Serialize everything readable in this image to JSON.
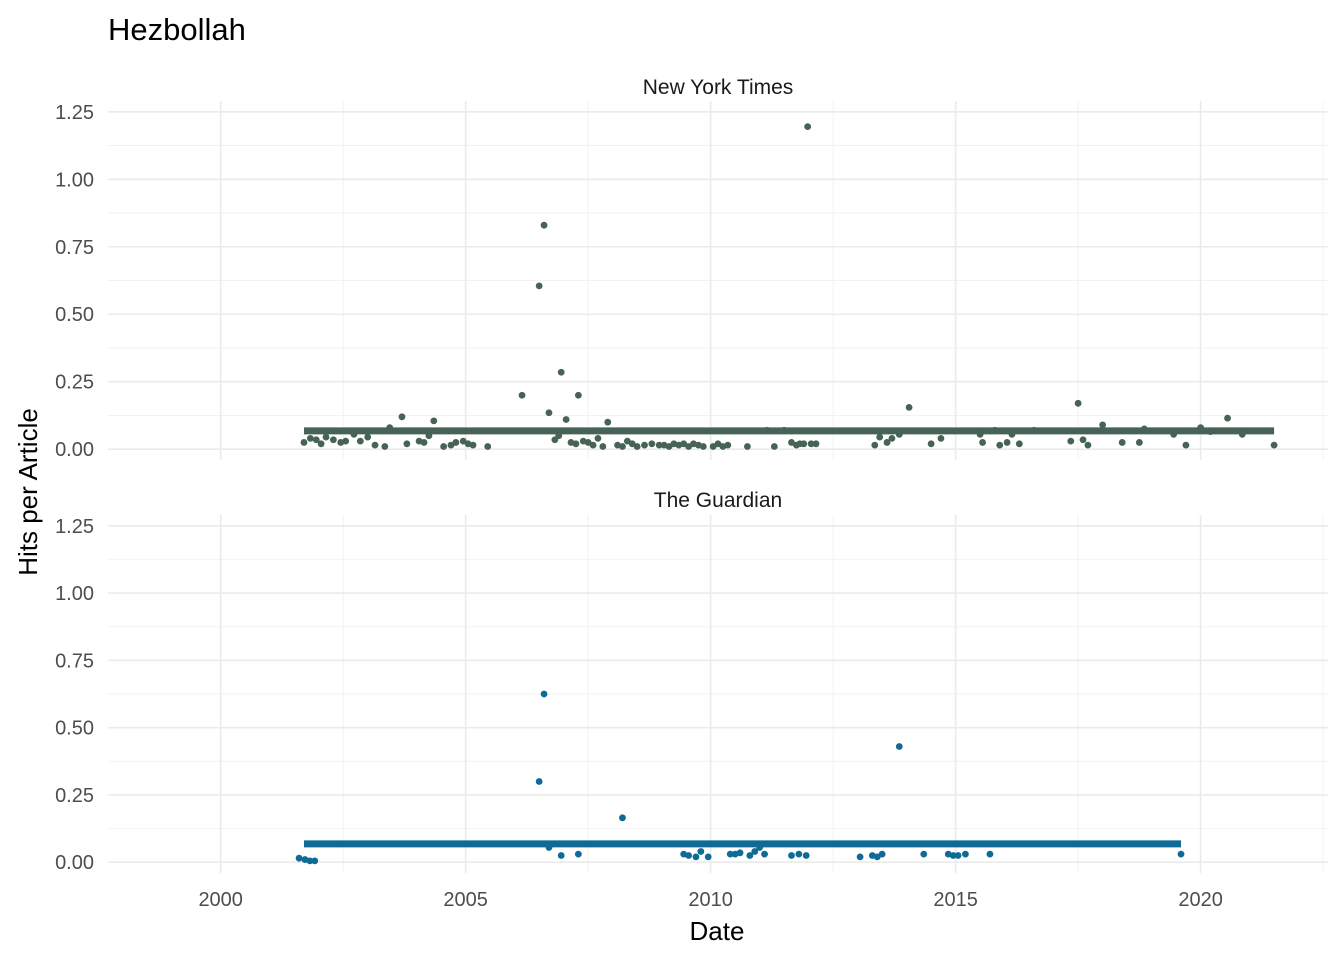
{
  "chart_data": {
    "type": "scatter",
    "title": "Hezbollah",
    "xlabel": "Date",
    "ylabel": "Hits per Article",
    "xlim": [
      1997.7,
      2022.6
    ],
    "ylim": [
      -0.04,
      1.29
    ],
    "x_ticks": [
      "2000",
      "2005",
      "2010",
      "2015",
      "2020"
    ],
    "y_ticks": [
      "0.00",
      "0.25",
      "0.50",
      "0.75",
      "1.00",
      "1.25"
    ],
    "grid": true,
    "legend": "none",
    "panels": [
      {
        "label": "New York Times",
        "color": "#466355",
        "mean_line": {
          "x_start": 2001.7,
          "x_end": 2021.5,
          "y": 0.068
        },
        "points": [
          [
            2001.7,
            0.025
          ],
          [
            2001.83,
            0.04
          ],
          [
            2001.95,
            0.035
          ],
          [
            2002.05,
            0.02
          ],
          [
            2002.15,
            0.045
          ],
          [
            2002.3,
            0.035
          ],
          [
            2002.45,
            0.025
          ],
          [
            2002.55,
            0.03
          ],
          [
            2002.72,
            0.055
          ],
          [
            2002.85,
            0.03
          ],
          [
            2003.0,
            0.045
          ],
          [
            2003.15,
            0.015
          ],
          [
            2003.35,
            0.01
          ],
          [
            2003.45,
            0.08
          ],
          [
            2003.7,
            0.12
          ],
          [
            2003.8,
            0.02
          ],
          [
            2004.05,
            0.03
          ],
          [
            2004.15,
            0.025
          ],
          [
            2004.25,
            0.05
          ],
          [
            2004.35,
            0.105
          ],
          [
            2004.55,
            0.01
          ],
          [
            2004.7,
            0.015
          ],
          [
            2004.8,
            0.025
          ],
          [
            2004.95,
            0.03
          ],
          [
            2005.05,
            0.02
          ],
          [
            2005.15,
            0.015
          ],
          [
            2005.45,
            0.01
          ],
          [
            2006.15,
            0.2
          ],
          [
            2006.5,
            0.605
          ],
          [
            2006.6,
            0.83
          ],
          [
            2006.7,
            0.135
          ],
          [
            2006.82,
            0.035
          ],
          [
            2006.9,
            0.05
          ],
          [
            2006.95,
            0.285
          ],
          [
            2007.05,
            0.11
          ],
          [
            2007.15,
            0.025
          ],
          [
            2007.25,
            0.02
          ],
          [
            2007.3,
            0.2
          ],
          [
            2007.4,
            0.03
          ],
          [
            2007.5,
            0.025
          ],
          [
            2007.6,
            0.015
          ],
          [
            2007.7,
            0.04
          ],
          [
            2007.8,
            0.01
          ],
          [
            2007.9,
            0.1
          ],
          [
            2008.1,
            0.015
          ],
          [
            2008.2,
            0.01
          ],
          [
            2008.3,
            0.03
          ],
          [
            2008.4,
            0.02
          ],
          [
            2008.5,
            0.01
          ],
          [
            2008.65,
            0.015
          ],
          [
            2008.8,
            0.02
          ],
          [
            2008.95,
            0.015
          ],
          [
            2009.05,
            0.015
          ],
          [
            2009.15,
            0.01
          ],
          [
            2009.25,
            0.02
          ],
          [
            2009.35,
            0.015
          ],
          [
            2009.45,
            0.02
          ],
          [
            2009.55,
            0.01
          ],
          [
            2009.65,
            0.02
          ],
          [
            2009.75,
            0.015
          ],
          [
            2009.85,
            0.01
          ],
          [
            2010.05,
            0.01
          ],
          [
            2010.15,
            0.02
          ],
          [
            2010.25,
            0.01
          ],
          [
            2010.35,
            0.015
          ],
          [
            2010.75,
            0.01
          ],
          [
            2011.15,
            0.07
          ],
          [
            2011.3,
            0.01
          ],
          [
            2011.5,
            0.07
          ],
          [
            2011.65,
            0.025
          ],
          [
            2011.75,
            0.015
          ],
          [
            2011.82,
            0.02
          ],
          [
            2011.9,
            0.02
          ],
          [
            2011.98,
            1.195
          ],
          [
            2012.05,
            0.02
          ],
          [
            2012.15,
            0.02
          ],
          [
            2013.35,
            0.015
          ],
          [
            2013.45,
            0.045
          ],
          [
            2013.6,
            0.025
          ],
          [
            2013.7,
            0.04
          ],
          [
            2013.85,
            0.055
          ],
          [
            2014.05,
            0.155
          ],
          [
            2014.5,
            0.02
          ],
          [
            2014.7,
            0.04
          ],
          [
            2015.5,
            0.055
          ],
          [
            2015.55,
            0.025
          ],
          [
            2015.8,
            0.07
          ],
          [
            2015.9,
            0.015
          ],
          [
            2016.05,
            0.025
          ],
          [
            2016.15,
            0.055
          ],
          [
            2016.3,
            0.02
          ],
          [
            2016.6,
            0.07
          ],
          [
            2017.35,
            0.03
          ],
          [
            2017.5,
            0.17
          ],
          [
            2017.6,
            0.035
          ],
          [
            2017.7,
            0.015
          ],
          [
            2018.0,
            0.09
          ],
          [
            2018.4,
            0.025
          ],
          [
            2018.75,
            0.025
          ],
          [
            2018.85,
            0.075
          ],
          [
            2019.45,
            0.055
          ],
          [
            2019.7,
            0.015
          ],
          [
            2020.0,
            0.08
          ],
          [
            2020.2,
            0.065
          ],
          [
            2020.55,
            0.115
          ],
          [
            2020.85,
            0.055
          ],
          [
            2021.5,
            0.015
          ]
        ]
      },
      {
        "label": "The Guardian",
        "color": "#0F6B95",
        "mean_line": {
          "x_start": 2001.7,
          "x_end": 2019.6,
          "y": 0.068
        },
        "points": [
          [
            2001.6,
            0.015
          ],
          [
            2001.72,
            0.01
          ],
          [
            2001.82,
            0.005
          ],
          [
            2001.92,
            0.005
          ],
          [
            2006.5,
            0.3
          ],
          [
            2006.6,
            0.625
          ],
          [
            2006.7,
            0.055
          ],
          [
            2006.95,
            0.025
          ],
          [
            2007.3,
            0.03
          ],
          [
            2008.2,
            0.165
          ],
          [
            2009.45,
            0.03
          ],
          [
            2009.55,
            0.025
          ],
          [
            2009.7,
            0.02
          ],
          [
            2009.8,
            0.04
          ],
          [
            2009.95,
            0.02
          ],
          [
            2010.4,
            0.03
          ],
          [
            2010.5,
            0.03
          ],
          [
            2010.6,
            0.035
          ],
          [
            2010.8,
            0.025
          ],
          [
            2010.9,
            0.04
          ],
          [
            2011.0,
            0.055
          ],
          [
            2011.1,
            0.03
          ],
          [
            2011.65,
            0.025
          ],
          [
            2011.8,
            0.03
          ],
          [
            2011.95,
            0.025
          ],
          [
            2013.05,
            0.02
          ],
          [
            2013.3,
            0.025
          ],
          [
            2013.4,
            0.02
          ],
          [
            2013.5,
            0.03
          ],
          [
            2013.85,
            0.43
          ],
          [
            2014.35,
            0.03
          ],
          [
            2014.85,
            0.03
          ],
          [
            2014.95,
            0.025
          ],
          [
            2015.05,
            0.025
          ],
          [
            2015.2,
            0.03
          ],
          [
            2015.7,
            0.03
          ],
          [
            2019.6,
            0.03
          ]
        ]
      }
    ]
  }
}
